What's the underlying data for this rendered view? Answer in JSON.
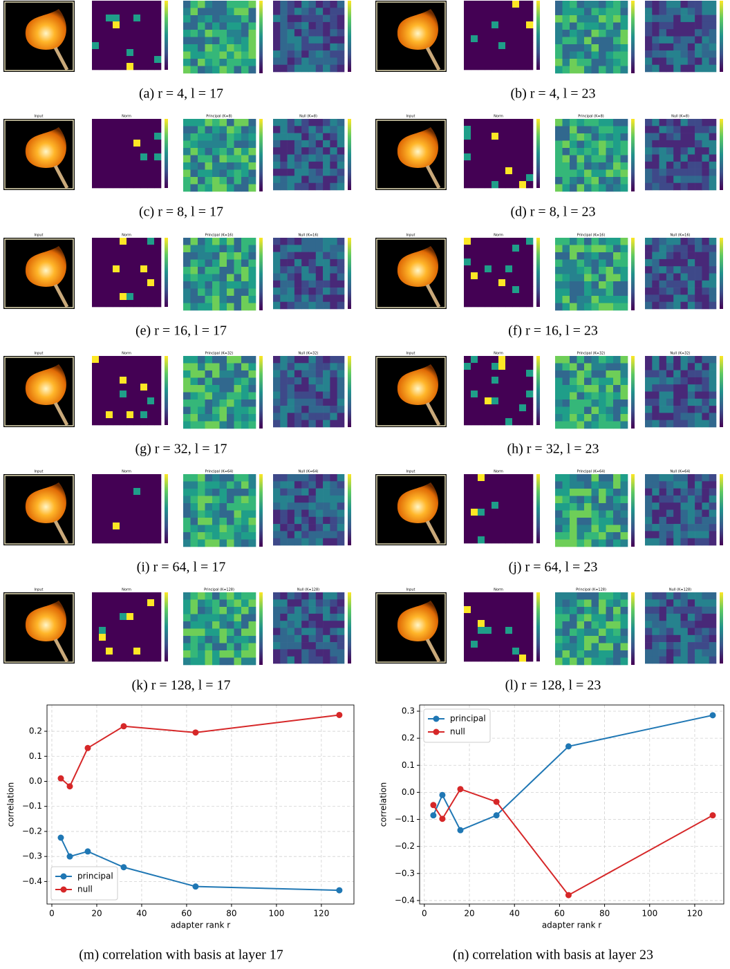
{
  "figure": {
    "rows": [
      {
        "captions": [
          "(a) r = 4, l = 17",
          "(b) r = 4, l = 23"
        ]
      },
      {
        "panel_titles": [
          "Input",
          "Norm",
          "Principal (K=8)",
          "Null (K=8)"
        ],
        "captions": [
          "(c) r = 8, l = 17",
          "(d) r = 8, l = 23"
        ]
      },
      {
        "panel_titles": [
          "Input",
          "Norm",
          "Principal (K=16)",
          "Null (K=16)"
        ],
        "captions": [
          "(e) r = 16, l = 17",
          "(f) r = 16, l = 23"
        ]
      },
      {
        "panel_titles": [
          "Input",
          "Norm",
          "Principal (K=32)",
          "Null (K=32)"
        ],
        "captions": [
          "(g) r = 32, l = 17",
          "(h) r = 32, l = 23"
        ]
      },
      {
        "panel_titles": [
          "Input",
          "Norm",
          "Principal (K=64)",
          "Null (K=64)"
        ],
        "captions": [
          "(i) r = 64, l = 17",
          "(j) r = 64, l = 23"
        ]
      },
      {
        "panel_titles": [
          "Input",
          "Norm",
          "Principal (K=128)",
          "Null (K=128)"
        ],
        "captions": [
          "(k) r = 128, l = 17",
          "(l) r = 128, l = 23"
        ]
      }
    ]
  },
  "chart_data": [
    {
      "type": "line",
      "caption": "(m) correlation with basis at layer 17",
      "xlabel": "adapter rank r",
      "ylabel": "correlation",
      "x": [
        4,
        8,
        16,
        32,
        64,
        128
      ],
      "series": [
        {
          "name": "principal",
          "color": "#1f77b4",
          "values": [
            -0.225,
            -0.3,
            -0.28,
            -0.343,
            -0.42,
            -0.435
          ]
        },
        {
          "name": "null",
          "color": "#d62728",
          "values": [
            0.012,
            -0.02,
            0.133,
            0.22,
            0.195,
            0.265
          ]
        }
      ],
      "xlim": [
        -2.15,
        134.5
      ],
      "xticks": [
        0,
        20,
        40,
        60,
        80,
        100,
        120
      ],
      "ylim": [
        -0.49,
        0.305
      ],
      "yticks": [
        {
          "value": -0.4,
          "label": "−0.4"
        },
        {
          "value": -0.3,
          "label": "−0.3"
        },
        {
          "value": -0.2,
          "label": "−0.2"
        },
        {
          "value": -0.1,
          "label": "−0.1"
        },
        {
          "value": 0,
          "label": "0.0"
        },
        0.1,
        0.2
      ],
      "grid": true,
      "legend": "lower-left"
    },
    {
      "type": "line",
      "caption": "(n) correlation with basis at layer 23",
      "xlabel": "adapter rank r",
      "ylabel": "correlation",
      "x": [
        4,
        8,
        16,
        32,
        64,
        128
      ],
      "series": [
        {
          "name": "principal",
          "color": "#1f77b4",
          "values": [
            -0.085,
            -0.01,
            -0.14,
            -0.085,
            0.17,
            0.285
          ]
        },
        {
          "name": "null",
          "color": "#d62728",
          "values": [
            -0.047,
            -0.098,
            0.012,
            -0.035,
            -0.38,
            -0.085
          ]
        }
      ],
      "xlim": [
        -2.1,
        132.9
      ],
      "xticks": [
        0,
        20,
        40,
        60,
        80,
        100,
        120
      ],
      "ylim": [
        -0.413,
        0.323
      ],
      "yticks": [
        {
          "value": -0.4,
          "label": "−0.4"
        },
        {
          "value": -0.3,
          "label": "−0.3"
        },
        {
          "value": -0.2,
          "label": "−0.2"
        },
        {
          "value": -0.1,
          "label": "−0.1"
        },
        {
          "value": 0,
          "label": "0.0"
        },
        0.1,
        0.2,
        0.3
      ],
      "grid": true,
      "legend": "upper-left"
    }
  ]
}
